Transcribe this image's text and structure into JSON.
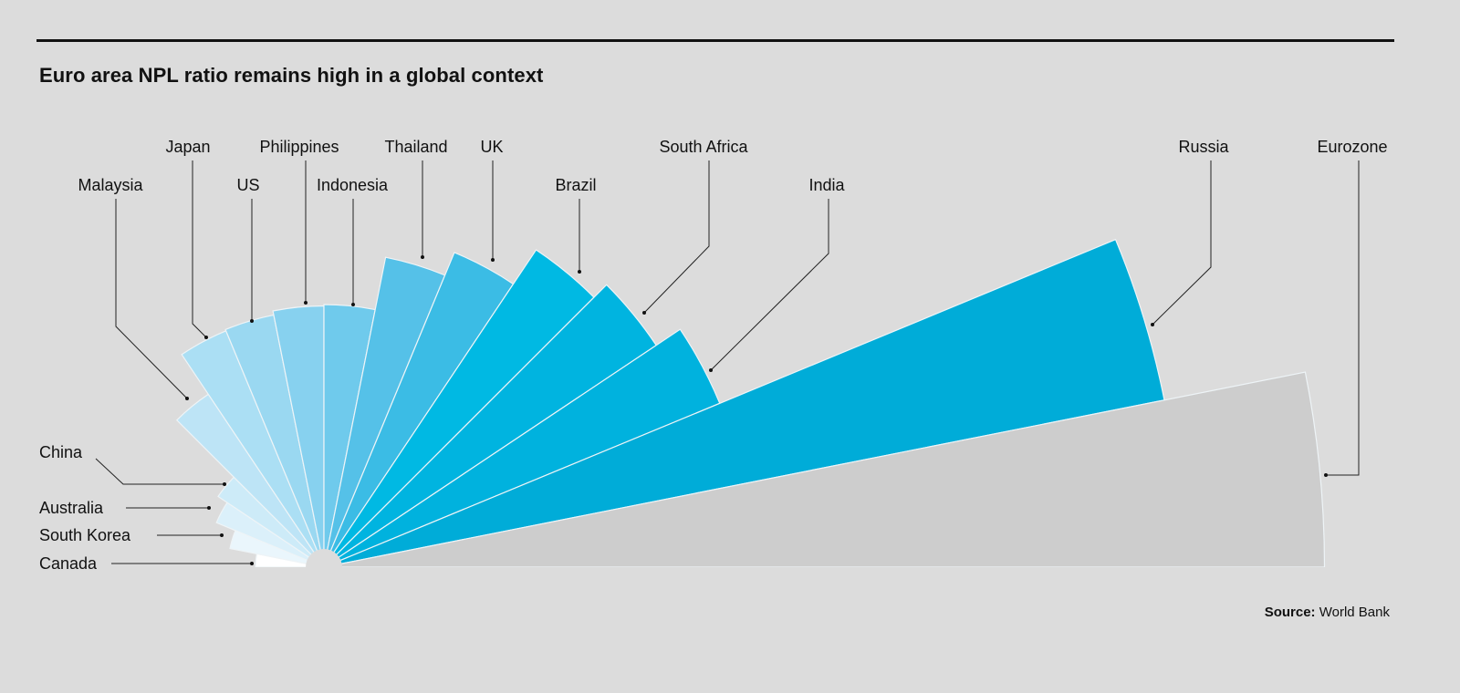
{
  "chart_data": {
    "type": "radial-bar",
    "title": "Euro area NPL ratio remains high in a global context",
    "source_label": "Source:",
    "source_text": "World Bank",
    "value_note": "relative bar lengths estimated from wedge radii (no axis shown)",
    "categories": [
      "Canada",
      "South Korea",
      "Australia",
      "China",
      "Malaysia",
      "Japan",
      "US",
      "Philippines",
      "Indonesia",
      "Thailand",
      "UK",
      "Brazil",
      "South Africa",
      "India",
      "Russia",
      "Eurozone"
    ],
    "values": [
      0.5,
      0.7,
      0.85,
      0.93,
      1.52,
      1.87,
      1.88,
      1.91,
      1.92,
      2.31,
      2.49,
      2.79,
      2.92,
      3.13,
      6.26,
      7.31
    ],
    "colors": [
      "#ffffff",
      "#eaf6fc",
      "#dbf0fa",
      "#cdebf8",
      "#bde4f6",
      "#abdff4",
      "#9ad8f1",
      "#87d1ef",
      "#6fcaec",
      "#55c1e8",
      "#3bbce5",
      "#00b9e3",
      "#00b4e0",
      "#00b2de",
      "#00acd8",
      "#cdcdcd"
    ],
    "highlight": "Eurozone",
    "legend": "none",
    "grid": false
  }
}
